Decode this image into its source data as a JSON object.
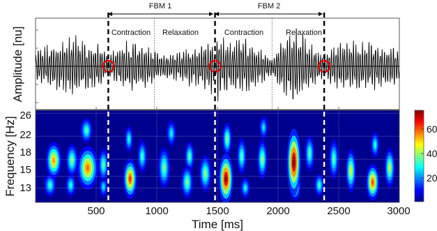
{
  "chart_data": [
    {
      "type": "line",
      "panel": "signal",
      "ylabel": "Amplitude [nu]",
      "x_range_ms": [
        0,
        3000
      ],
      "baseline": 0,
      "signal_frequency_hz": 55,
      "envelope": {
        "t_ms": [
          0,
          120,
          300,
          420,
          520,
          600,
          680,
          800,
          980,
          1100,
          1300,
          1460,
          1480,
          1500,
          1600,
          1700,
          1800,
          1950,
          2050,
          2150,
          2250,
          2380,
          2450,
          2600,
          2800,
          3000
        ],
        "amplitude": [
          0.45,
          0.6,
          0.8,
          0.7,
          0.62,
          0.3,
          0.55,
          0.75,
          0.45,
          0.35,
          0.55,
          0.75,
          0.2,
          0.95,
          0.7,
          0.85,
          0.65,
          0.25,
          0.85,
          1.0,
          0.7,
          0.3,
          0.6,
          0.7,
          0.65,
          0.55
        ]
      },
      "zero_crossings_ms": [
        600,
        1480,
        2380
      ],
      "phase_markers_ms": [
        600,
        1480,
        2380
      ],
      "phase_boundaries_ms": [
        980,
        1950
      ],
      "brackets": [
        {
          "label": "FBM 1",
          "start_ms": 600,
          "end_ms": 1480
        },
        {
          "label": "FBM 2",
          "start_ms": 1480,
          "end_ms": 2380
        }
      ],
      "phase_labels": [
        {
          "text": "Contraction",
          "center_ms": 790
        },
        {
          "text": "Relaxation",
          "center_ms": 1230
        },
        {
          "text": "Contraction",
          "center_ms": 1710
        },
        {
          "text": "Relaxation",
          "center_ms": 2160
        }
      ]
    },
    {
      "type": "heatmap",
      "panel": "spectrogram",
      "xlabel": "Time [ms]",
      "ylabel": "Frequency [Hz]",
      "xlim": [
        0,
        3000
      ],
      "ylim": [
        10.5,
        26.5
      ],
      "x_ticks": [
        500,
        1000,
        1500,
        2000,
        2500,
        3000
      ],
      "y_ticks": [
        13,
        15,
        18,
        22,
        26
      ],
      "colorbar": {
        "range": [
          0,
          75
        ],
        "ticks": [
          20,
          40,
          60
        ],
        "colormap": "jet"
      },
      "blobs": [
        {
          "t_ms": 150,
          "f_hz": 17.8,
          "width_ms": 45,
          "height_hz": 2.2,
          "value": 52
        },
        {
          "t_ms": 120,
          "f_hz": 13.5,
          "width_ms": 35,
          "height_hz": 1.4,
          "value": 30
        },
        {
          "t_ms": 300,
          "f_hz": 17.8,
          "width_ms": 35,
          "height_hz": 2.0,
          "value": 35
        },
        {
          "t_ms": 290,
          "f_hz": 13.5,
          "width_ms": 30,
          "height_hz": 1.4,
          "value": 28
        },
        {
          "t_ms": 430,
          "f_hz": 16.5,
          "width_ms": 60,
          "height_hz": 2.6,
          "value": 55
        },
        {
          "t_ms": 420,
          "f_hz": 23.0,
          "width_ms": 35,
          "height_hz": 1.5,
          "value": 32
        },
        {
          "t_ms": 560,
          "f_hz": 17.0,
          "width_ms": 30,
          "height_hz": 2.0,
          "value": 32
        },
        {
          "t_ms": 560,
          "f_hz": 13.2,
          "width_ms": 25,
          "height_hz": 1.3,
          "value": 24
        },
        {
          "t_ms": 780,
          "f_hz": 14.6,
          "width_ms": 40,
          "height_hz": 2.4,
          "value": 60
        },
        {
          "t_ms": 770,
          "f_hz": 21.5,
          "width_ms": 25,
          "height_hz": 1.6,
          "value": 28
        },
        {
          "t_ms": 880,
          "f_hz": 18.5,
          "width_ms": 28,
          "height_hz": 2.0,
          "value": 30
        },
        {
          "t_ms": 1060,
          "f_hz": 16.5,
          "width_ms": 35,
          "height_hz": 2.5,
          "value": 34
        },
        {
          "t_ms": 1120,
          "f_hz": 22.5,
          "width_ms": 28,
          "height_hz": 1.6,
          "value": 26
        },
        {
          "t_ms": 1250,
          "f_hz": 14.0,
          "width_ms": 35,
          "height_hz": 2.0,
          "value": 35
        },
        {
          "t_ms": 1270,
          "f_hz": 18.5,
          "width_ms": 28,
          "height_hz": 1.8,
          "value": 32
        },
        {
          "t_ms": 1400,
          "f_hz": 15.5,
          "width_ms": 35,
          "height_hz": 2.2,
          "value": 36
        },
        {
          "t_ms": 1570,
          "f_hz": 14.6,
          "width_ms": 42,
          "height_hz": 3.0,
          "value": 72
        },
        {
          "t_ms": 1580,
          "f_hz": 21.5,
          "width_ms": 28,
          "height_hz": 2.0,
          "value": 36
        },
        {
          "t_ms": 1700,
          "f_hz": 18.5,
          "width_ms": 28,
          "height_hz": 2.2,
          "value": 32
        },
        {
          "t_ms": 1730,
          "f_hz": 13.0,
          "width_ms": 28,
          "height_hz": 1.3,
          "value": 26
        },
        {
          "t_ms": 1870,
          "f_hz": 18.0,
          "width_ms": 30,
          "height_hz": 2.4,
          "value": 36
        },
        {
          "t_ms": 1880,
          "f_hz": 23.5,
          "width_ms": 25,
          "height_hz": 1.4,
          "value": 25
        },
        {
          "t_ms": 2130,
          "f_hz": 17.5,
          "width_ms": 40,
          "height_hz": 4.0,
          "value": 75
        },
        {
          "t_ms": 2140,
          "f_hz": 13.5,
          "width_ms": 32,
          "height_hz": 1.8,
          "value": 50
        },
        {
          "t_ms": 2260,
          "f_hz": 19.0,
          "width_ms": 28,
          "height_hz": 2.2,
          "value": 32
        },
        {
          "t_ms": 2340,
          "f_hz": 13.5,
          "width_ms": 28,
          "height_hz": 1.4,
          "value": 30
        },
        {
          "t_ms": 2460,
          "f_hz": 18.0,
          "width_ms": 28,
          "height_hz": 2.4,
          "value": 32
        },
        {
          "t_ms": 2600,
          "f_hz": 16.0,
          "width_ms": 30,
          "height_hz": 2.6,
          "value": 42
        },
        {
          "t_ms": 2780,
          "f_hz": 14.0,
          "width_ms": 38,
          "height_hz": 2.2,
          "value": 58
        },
        {
          "t_ms": 2800,
          "f_hz": 20.5,
          "width_ms": 25,
          "height_hz": 1.6,
          "value": 28
        },
        {
          "t_ms": 2920,
          "f_hz": 16.5,
          "width_ms": 30,
          "height_hz": 2.4,
          "value": 40
        }
      ]
    }
  ],
  "text": {
    "amp_ylabel": "Amplitude [nu]",
    "freq_ylabel": "Frequency [Hz]",
    "time_xlabel": "Time [ms]",
    "fbm1": "FBM 1",
    "fbm2": "FBM 2",
    "contraction1": "Contraction",
    "relaxation1": "Relaxation",
    "contraction2": "Contraction",
    "relaxation2": "Relaxation",
    "ytick_26": "26",
    "ytick_22": "22",
    "ytick_18": "18",
    "ytick_15": "15",
    "ytick_13": "13",
    "xtick_500": "500",
    "xtick_1000": "1000",
    "xtick_1500": "1500",
    "xtick_2000": "2000",
    "xtick_2500": "2500",
    "xtick_3000": "3000",
    "cb_60": "60",
    "cb_40": "40",
    "cb_20": "20"
  }
}
